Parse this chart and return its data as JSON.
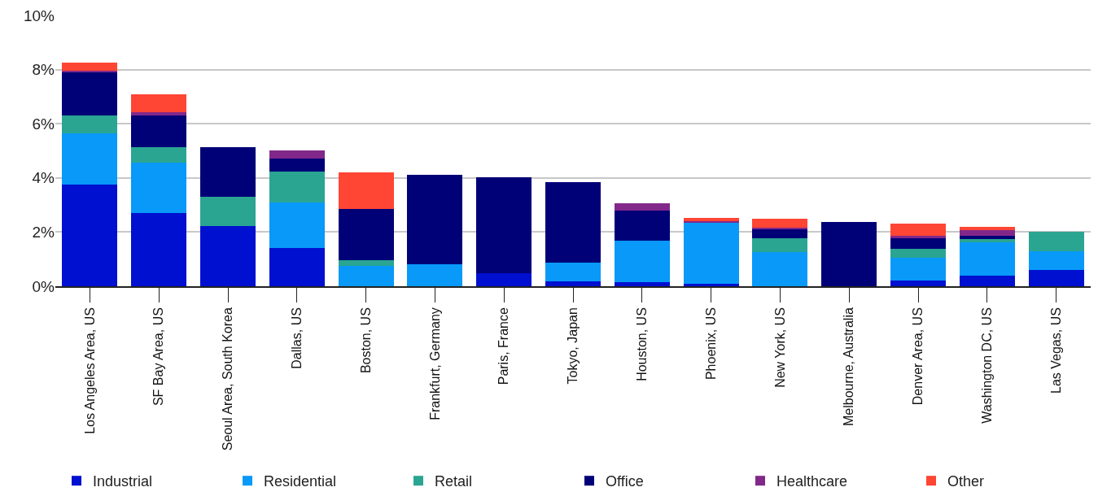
{
  "chart_data": {
    "type": "bar",
    "stacked": true,
    "categories": [
      "Los Angeles Area, US",
      "SF Bay Area, US",
      "Seoul Area, South Korea",
      "Dallas, US",
      "Boston, US",
      "Frankfurt, Germany",
      "Paris, France",
      "Tokyo, Japan",
      "Houston, US",
      "Phoenix, US",
      "New York, US",
      "Melbourne, Australia",
      "Denver Area, US",
      "Washington DC, US",
      "Las Vegas, US"
    ],
    "series": [
      {
        "name": "Industrial",
        "color": "#0010d0",
        "values": [
          3.76,
          2.7,
          2.22,
          1.4,
          null,
          null,
          0.47,
          0.19,
          0.14,
          0.1,
          null,
          null,
          0.22,
          0.4,
          0.61
        ]
      },
      {
        "name": "Residential",
        "color": "#0899f9",
        "values": [
          1.89,
          1.86,
          null,
          1.69,
          0.74,
          0.81,
          null,
          0.68,
          1.54,
          2.25,
          1.25,
          null,
          0.83,
          1.23,
          0.68
        ]
      },
      {
        "name": "Retail",
        "color": "#2aa592",
        "values": [
          0.67,
          0.58,
          1.09,
          1.14,
          0.21,
          null,
          null,
          null,
          null,
          null,
          0.52,
          null,
          0.33,
          0.12,
          0.73
        ]
      },
      {
        "name": "Office",
        "color": "#000077",
        "values": [
          1.6,
          1.16,
          1.84,
          0.48,
          1.9,
          3.3,
          3.56,
          2.96,
          1.11,
          null,
          0.33,
          2.36,
          0.42,
          0.11,
          null
        ]
      },
      {
        "name": "Healthcare",
        "color": "#82288a",
        "values": [
          0.05,
          0.12,
          null,
          0.3,
          null,
          null,
          null,
          null,
          0.28,
          0.04,
          0.07,
          null,
          0.05,
          0.22,
          null
        ]
      },
      {
        "name": "Other",
        "color": "#ff4534",
        "values": [
          0.29,
          0.67,
          null,
          null,
          1.36,
          null,
          null,
          null,
          null,
          0.13,
          0.32,
          null,
          0.46,
          0.1,
          null
        ]
      }
    ],
    "ylim": [
      0,
      10
    ],
    "yticks": [
      {
        "value": 0,
        "label": "0%"
      },
      {
        "value": 2,
        "label": "2%"
      },
      {
        "value": 4,
        "label": "4%"
      },
      {
        "value": 6,
        "label": "6%"
      },
      {
        "value": 8,
        "label": "8%"
      },
      {
        "value": 10,
        "label": "10%"
      }
    ],
    "grid": "y",
    "legend": "bottom"
  }
}
